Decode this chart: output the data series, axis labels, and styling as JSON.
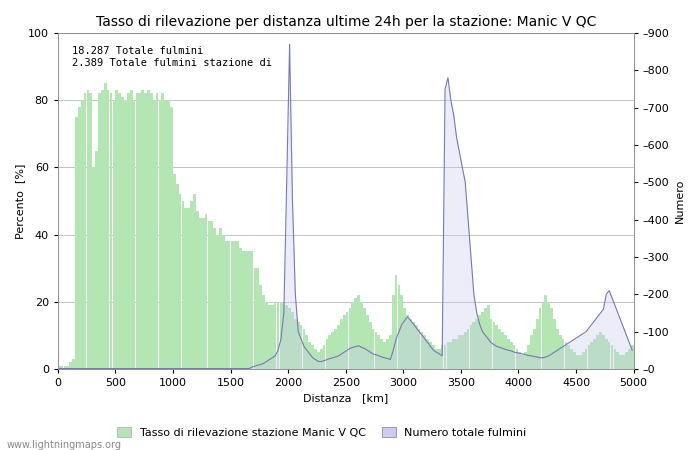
{
  "title": "Tasso di rilevazione per distanza ultime 24h per la stazione: Manic V QC",
  "xlabel": "Distanza   [km]",
  "ylabel_left": "Percento  [%]",
  "ylabel_right": "Numero",
  "xlim": [
    0,
    5000
  ],
  "ylim_left": [
    0,
    100
  ],
  "ylim_right": [
    0,
    900
  ],
  "xticks": [
    0,
    500,
    1000,
    1500,
    2000,
    2500,
    3000,
    3500,
    4000,
    4500,
    5000
  ],
  "yticks_left": [
    0,
    20,
    40,
    60,
    80,
    100
  ],
  "yticks_right": [
    0,
    100,
    200,
    300,
    400,
    500,
    600,
    700,
    800,
    900
  ],
  "ytick_right_labels": [
    "–0",
    "–100",
    "–200",
    "–300",
    "–400",
    "–500",
    "–600",
    "–700",
    "–800",
    "–900"
  ],
  "bar_color": "#b3e6b3",
  "line_color": "#7777bb",
  "line_fill_color": "#ccccee",
  "annotation_text": "18.287 Totale fulmini\n2.389 Totale fulmini stazione di",
  "legend_bar_label": "Tasso di rilevazione stazione Manic V QC",
  "legend_line_label": "Numero totale fulmini",
  "watermark": "www.lightningmaps.org",
  "title_fontsize": 10,
  "label_fontsize": 8,
  "tick_fontsize": 8,
  "legend_fontsize": 8,
  "background_color": "#ffffff",
  "grid_color": "#aaaaaa",
  "bin_width": 25,
  "distances": [
    0,
    25,
    50,
    75,
    100,
    125,
    150,
    175,
    200,
    225,
    250,
    275,
    300,
    325,
    350,
    375,
    400,
    425,
    450,
    475,
    500,
    525,
    550,
    575,
    600,
    625,
    650,
    675,
    700,
    725,
    750,
    775,
    800,
    825,
    850,
    875,
    900,
    925,
    950,
    975,
    1000,
    1025,
    1050,
    1075,
    1100,
    1125,
    1150,
    1175,
    1200,
    1225,
    1250,
    1275,
    1300,
    1325,
    1350,
    1375,
    1400,
    1425,
    1450,
    1475,
    1500,
    1525,
    1550,
    1575,
    1600,
    1625,
    1650,
    1675,
    1700,
    1725,
    1750,
    1775,
    1800,
    1825,
    1850,
    1875,
    1900,
    1925,
    1950,
    1975,
    2000,
    2025,
    2050,
    2075,
    2100,
    2125,
    2150,
    2175,
    2200,
    2225,
    2250,
    2275,
    2300,
    2325,
    2350,
    2375,
    2400,
    2425,
    2450,
    2475,
    2500,
    2525,
    2550,
    2575,
    2600,
    2625,
    2650,
    2675,
    2700,
    2725,
    2750,
    2775,
    2800,
    2825,
    2850,
    2875,
    2900,
    2925,
    2950,
    2975,
    3000,
    3025,
    3050,
    3075,
    3100,
    3125,
    3150,
    3175,
    3200,
    3225,
    3250,
    3275,
    3300,
    3325,
    3350,
    3375,
    3400,
    3425,
    3450,
    3475,
    3500,
    3525,
    3550,
    3575,
    3600,
    3625,
    3650,
    3675,
    3700,
    3725,
    3750,
    3775,
    3800,
    3825,
    3850,
    3875,
    3900,
    3925,
    3950,
    3975,
    4000,
    4025,
    4050,
    4075,
    4100,
    4125,
    4150,
    4175,
    4200,
    4225,
    4250,
    4275,
    4300,
    4325,
    4350,
    4375,
    4400,
    4425,
    4450,
    4475,
    4500,
    4525,
    4550,
    4575,
    4600,
    4625,
    4650,
    4675,
    4700,
    4725,
    4750,
    4775,
    4800,
    4825,
    4850,
    4875,
    4900,
    4925,
    4950,
    4975
  ],
  "detection_rates": [
    1,
    1,
    1,
    1,
    2,
    3,
    75,
    78,
    80,
    82,
    83,
    82,
    60,
    65,
    82,
    83,
    85,
    83,
    82,
    80,
    83,
    82,
    81,
    80,
    82,
    83,
    80,
    82,
    82,
    83,
    82,
    83,
    82,
    80,
    82,
    80,
    82,
    80,
    80,
    78,
    58,
    55,
    52,
    50,
    48,
    48,
    50,
    52,
    47,
    45,
    45,
    46,
    44,
    44,
    42,
    40,
    42,
    40,
    38,
    38,
    38,
    38,
    38,
    36,
    35,
    35,
    35,
    35,
    30,
    30,
    25,
    22,
    20,
    19,
    19,
    20,
    20,
    20,
    20,
    19,
    18,
    17,
    15,
    14,
    13,
    12,
    10,
    8,
    7,
    6,
    5,
    6,
    7,
    9,
    10,
    11,
    12,
    13,
    15,
    16,
    17,
    18,
    20,
    21,
    22,
    20,
    18,
    16,
    14,
    12,
    11,
    10,
    9,
    8,
    9,
    10,
    22,
    28,
    25,
    22,
    18,
    16,
    15,
    14,
    13,
    12,
    11,
    10,
    9,
    8,
    7,
    6,
    6,
    7,
    7,
    8,
    8,
    9,
    9,
    10,
    10,
    11,
    12,
    13,
    14,
    15,
    16,
    17,
    18,
    19,
    15,
    14,
    13,
    12,
    11,
    10,
    9,
    8,
    7,
    6,
    5,
    4,
    5,
    7,
    10,
    12,
    15,
    18,
    20,
    22,
    20,
    18,
    15,
    12,
    10,
    9,
    8,
    7,
    6,
    5,
    4,
    4,
    5,
    6,
    7,
    8,
    9,
    10,
    11,
    10,
    9,
    8,
    7,
    6,
    5,
    4,
    4,
    5,
    6,
    7
  ],
  "lightning_counts": [
    1,
    1,
    1,
    1,
    1,
    1,
    1,
    1,
    1,
    1,
    1,
    1,
    1,
    1,
    1,
    1,
    1,
    1,
    1,
    1,
    1,
    1,
    1,
    1,
    1,
    1,
    1,
    1,
    1,
    1,
    1,
    1,
    1,
    1,
    1,
    1,
    1,
    1,
    1,
    1,
    1,
    1,
    1,
    1,
    1,
    1,
    1,
    1,
    1,
    1,
    1,
    1,
    1,
    1,
    1,
    1,
    1,
    1,
    1,
    1,
    1,
    1,
    1,
    1,
    1,
    1,
    1,
    5,
    8,
    10,
    12,
    15,
    20,
    25,
    30,
    35,
    50,
    80,
    150,
    500,
    870,
    450,
    200,
    100,
    80,
    60,
    50,
    40,
    30,
    25,
    20,
    20,
    22,
    25,
    28,
    30,
    32,
    35,
    40,
    45,
    50,
    55,
    58,
    60,
    62,
    58,
    55,
    50,
    45,
    40,
    38,
    35,
    32,
    30,
    28,
    25,
    50,
    80,
    100,
    120,
    130,
    140,
    130,
    120,
    110,
    100,
    90,
    80,
    70,
    60,
    50,
    45,
    40,
    35,
    750,
    780,
    720,
    680,
    620,
    580,
    540,
    500,
    400,
    300,
    200,
    150,
    120,
    100,
    90,
    80,
    70,
    65,
    60,
    58,
    55,
    52,
    50,
    48,
    45,
    43,
    42,
    40,
    38,
    36,
    35,
    33,
    32,
    30,
    30,
    32,
    35,
    40,
    45,
    50,
    55,
    60,
    65,
    70,
    75,
    80,
    85,
    90,
    95,
    100,
    110,
    120,
    130,
    140,
    150,
    160,
    200,
    210,
    190,
    170,
    150,
    130,
    110,
    90,
    70,
    50
  ]
}
